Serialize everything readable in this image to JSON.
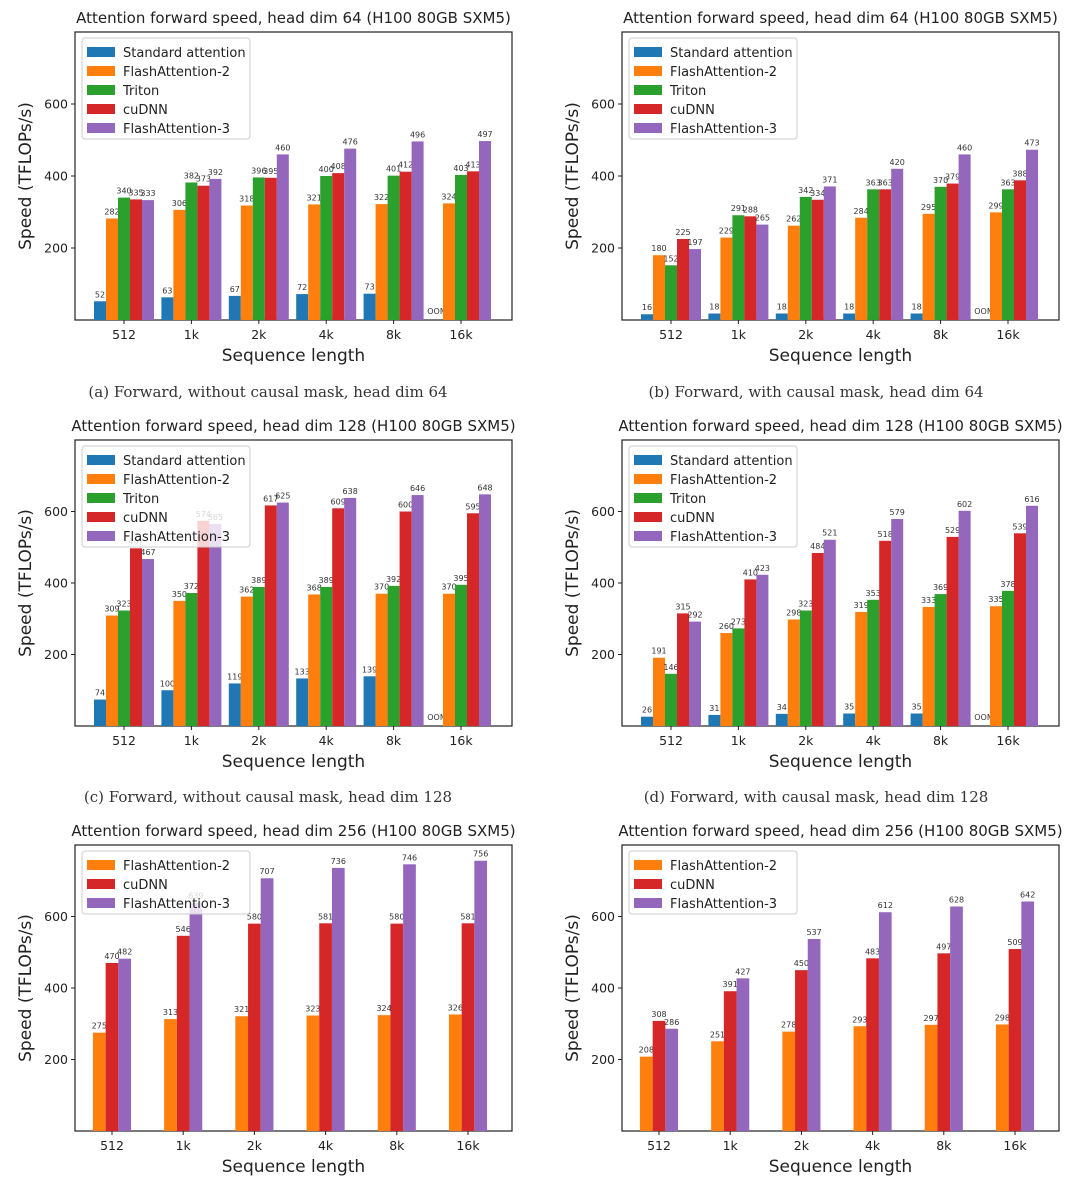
{
  "colors": {
    "Standard attention": "#1f77b4",
    "FlashAttention-2": "#ff7f0e",
    "Triton": "#2ca02c",
    "cuDNN": "#d62728",
    "FlashAttention-3": "#9467bd"
  },
  "chart_data": [
    {
      "type": "bar",
      "title": "Attention forward speed, head dim 64 (H100 80GB SXM5)",
      "caption": "(a) Forward, without causal mask, head dim 64",
      "xlabel": "Sequence length",
      "ylabel": "Speed (TFLOPs/s)",
      "ylim": [
        0,
        800
      ],
      "yticks": [
        200,
        400,
        600
      ],
      "legend": "top-left",
      "categories": [
        "512",
        "1k",
        "2k",
        "4k",
        "8k",
        "16k"
      ],
      "oom_label": "OOM",
      "series": [
        {
          "name": "Standard attention",
          "values": [
            52,
            63,
            67,
            72,
            73,
            null
          ]
        },
        {
          "name": "FlashAttention-2",
          "values": [
            282,
            306,
            318,
            321,
            322,
            324
          ]
        },
        {
          "name": "Triton",
          "values": [
            340,
            382,
            396,
            400,
            401,
            403
          ]
        },
        {
          "name": "cuDNN",
          "values": [
            335,
            373,
            395,
            408,
            412,
            413
          ]
        },
        {
          "name": "FlashAttention-3",
          "values": [
            333,
            392,
            460,
            476,
            496,
            497
          ]
        }
      ]
    },
    {
      "type": "bar",
      "title": "Attention forward speed, head dim 64 (H100 80GB SXM5)",
      "caption": "(b) Forward, with causal mask, head dim 64",
      "xlabel": "Sequence length",
      "ylabel": "Speed (TFLOPs/s)",
      "ylim": [
        0,
        800
      ],
      "yticks": [
        200,
        400,
        600
      ],
      "legend": "top-left",
      "categories": [
        "512",
        "1k",
        "2k",
        "4k",
        "8k",
        "16k"
      ],
      "oom_label": "OOM",
      "series": [
        {
          "name": "Standard attention",
          "values": [
            16,
            18,
            18,
            18,
            18,
            null
          ]
        },
        {
          "name": "FlashAttention-2",
          "values": [
            180,
            229,
            262,
            284,
            295,
            299
          ]
        },
        {
          "name": "Triton",
          "values": [
            152,
            291,
            342,
            363,
            370,
            363
          ]
        },
        {
          "name": "cuDNN",
          "values": [
            225,
            288,
            334,
            363,
            379,
            388
          ]
        },
        {
          "name": "FlashAttention-3",
          "values": [
            197,
            265,
            371,
            420,
            460,
            473
          ]
        }
      ]
    },
    {
      "type": "bar",
      "title": "Attention forward speed, head dim 128 (H100 80GB SXM5)",
      "caption": "(c) Forward, without causal mask, head dim 128",
      "xlabel": "Sequence length",
      "ylabel": "Speed (TFLOPs/s)",
      "ylim": [
        0,
        800
      ],
      "yticks": [
        200,
        400,
        600
      ],
      "legend": "top-left",
      "categories": [
        "512",
        "1k",
        "2k",
        "4k",
        "8k",
        "16k"
      ],
      "oom_label": "OOM",
      "series": [
        {
          "name": "Standard attention",
          "values": [
            74,
            100,
            119,
            133,
            139,
            null
          ]
        },
        {
          "name": "FlashAttention-2",
          "values": [
            309,
            350,
            362,
            368,
            370,
            370
          ]
        },
        {
          "name": "Triton",
          "values": [
            323,
            372,
            389,
            389,
            392,
            395
          ]
        },
        {
          "name": "cuDNN",
          "values": [
            497,
            574,
            617,
            609,
            600,
            595
          ]
        },
        {
          "name": "FlashAttention-3",
          "values": [
            467,
            565,
            625,
            638,
            646,
            648
          ]
        }
      ]
    },
    {
      "type": "bar",
      "title": "Attention forward speed, head dim 128 (H100 80GB SXM5)",
      "caption": "(d) Forward, with causal mask, head dim 128",
      "xlabel": "Sequence length",
      "ylabel": "Speed (TFLOPs/s)",
      "ylim": [
        0,
        800
      ],
      "yticks": [
        200,
        400,
        600
      ],
      "legend": "top-left",
      "categories": [
        "512",
        "1k",
        "2k",
        "4k",
        "8k",
        "16k"
      ],
      "oom_label": "OOM",
      "series": [
        {
          "name": "Standard attention",
          "values": [
            26,
            31,
            34,
            35,
            35,
            null
          ]
        },
        {
          "name": "FlashAttention-2",
          "values": [
            191,
            260,
            298,
            319,
            333,
            335
          ]
        },
        {
          "name": "Triton",
          "values": [
            146,
            273,
            323,
            353,
            369,
            378
          ]
        },
        {
          "name": "cuDNN",
          "values": [
            315,
            410,
            484,
            518,
            529,
            539
          ]
        },
        {
          "name": "FlashAttention-3",
          "values": [
            292,
            423,
            521,
            579,
            602,
            616
          ]
        }
      ]
    },
    {
      "type": "bar",
      "title": "Attention forward speed, head dim 256 (H100 80GB SXM5)",
      "caption": "",
      "xlabel": "Sequence length",
      "ylabel": "Speed (TFLOPs/s)",
      "ylim": [
        0,
        800
      ],
      "yticks": [
        200,
        400,
        600
      ],
      "legend": "top-left",
      "categories": [
        "512",
        "1k",
        "2k",
        "4k",
        "8k",
        "16k"
      ],
      "series": [
        {
          "name": "FlashAttention-2",
          "values": [
            275,
            313,
            321,
            323,
            324,
            326
          ]
        },
        {
          "name": "cuDNN",
          "values": [
            470,
            546,
            580,
            581,
            580,
            581
          ]
        },
        {
          "name": "FlashAttention-3",
          "values": [
            482,
            639,
            707,
            736,
            746,
            756
          ]
        }
      ]
    },
    {
      "type": "bar",
      "title": "Attention forward speed, head dim 256 (H100 80GB SXM5)",
      "caption": "",
      "xlabel": "Sequence length",
      "ylabel": "Speed (TFLOPs/s)",
      "ylim": [
        0,
        800
      ],
      "yticks": [
        200,
        400,
        600
      ],
      "legend": "top-left",
      "categories": [
        "512",
        "1k",
        "2k",
        "4k",
        "8k",
        "16k"
      ],
      "series": [
        {
          "name": "FlashAttention-2",
          "values": [
            208,
            251,
            278,
            293,
            297,
            298
          ]
        },
        {
          "name": "cuDNN",
          "values": [
            308,
            391,
            450,
            483,
            497,
            509
          ]
        },
        {
          "name": "FlashAttention-3",
          "values": [
            286,
            427,
            537,
            612,
            628,
            642
          ]
        }
      ]
    }
  ]
}
